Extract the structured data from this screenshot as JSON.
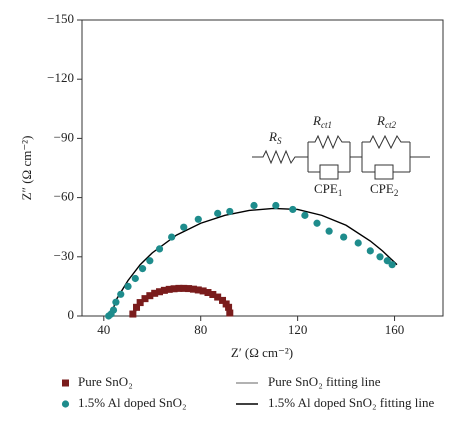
{
  "chart_data": {
    "type": "scatter",
    "x_label": "Z′ (Ω cm⁻²)",
    "y_label": "Z″ (Ω cm⁻²)",
    "xlim": [
      31,
      180
    ],
    "ylim": [
      0,
      -150
    ],
    "xticks": [
      40,
      80,
      120,
      160
    ],
    "yticks": [
      0,
      {
        "value": -30,
        "label": "−30"
      },
      {
        "value": -60,
        "label": "−60"
      },
      {
        "value": -90,
        "label": "−90"
      },
      {
        "value": -120,
        "label": "−120"
      },
      {
        "value": -150,
        "label": "−150"
      }
    ],
    "series": [
      {
        "name": "Pure SnO₂",
        "color": "#7a1c1c",
        "marker": "square",
        "x": [
          52,
          53.5,
          55,
          57,
          59,
          61,
          63,
          65,
          67,
          69,
          71,
          73,
          75,
          77,
          79,
          81,
          83,
          85,
          87,
          89,
          90.5,
          91.5,
          92
        ],
        "values": [
          -1,
          -4.4,
          -6.8,
          -8.8,
          -10.3,
          -11.5,
          -12.3,
          -13,
          -13.5,
          -13.8,
          -14,
          -14,
          -13.9,
          -13.6,
          -13.2,
          -12.7,
          -11.9,
          -10.9,
          -9.6,
          -7.9,
          -6.1,
          -4.4,
          -1.5
        ]
      },
      {
        "name": "1.5% Al doped SnO₂",
        "color": "#1e8c8c",
        "marker": "circle",
        "x": [
          42,
          43,
          44,
          45,
          47,
          50,
          53,
          56,
          59,
          63,
          68,
          73,
          79,
          87,
          92,
          102,
          111,
          118,
          123,
          128,
          133,
          139,
          145,
          150,
          154,
          157,
          159
        ],
        "values": [
          0,
          -1,
          -3,
          -7,
          -11,
          -15,
          -19,
          -24,
          -28,
          -34,
          -40,
          -45,
          -49,
          -52,
          -53,
          -56,
          -56,
          -54,
          -51,
          -47,
          -43,
          -40,
          -37,
          -33,
          -30,
          -28,
          -26
        ]
      },
      {
        "name": "Pure SnO₂ fitting line",
        "color": "#999999",
        "marker": "none",
        "x": [
          52,
          55,
          60,
          65,
          70,
          75,
          80,
          85,
          90,
          92
        ],
        "values": [
          0,
          -6,
          -10.5,
          -12.8,
          -14,
          -14,
          -13,
          -11,
          -6.5,
          -1
        ]
      },
      {
        "name": "1.5% Al doped SnO₂ fitting line",
        "color": "#000000",
        "marker": "none",
        "x": [
          43,
          45,
          50,
          55,
          60,
          70,
          80,
          90,
          100,
          110,
          120,
          130,
          140,
          150,
          155,
          161
        ],
        "values": [
          0,
          -8,
          -18,
          -26,
          -32,
          -41,
          -47,
          -51,
          -53.5,
          -54.5,
          -54,
          -51,
          -46,
          -38,
          -33,
          -26
        ]
      }
    ],
    "inset_labels": [
      {
        "main": "R",
        "sub": "S"
      },
      {
        "main": "R",
        "sub": "ct1"
      },
      {
        "main": "CPE",
        "sub": "1"
      },
      {
        "main": "R",
        "sub": "ct2"
      },
      {
        "main": "CPE",
        "sub": "2"
      }
    ]
  }
}
